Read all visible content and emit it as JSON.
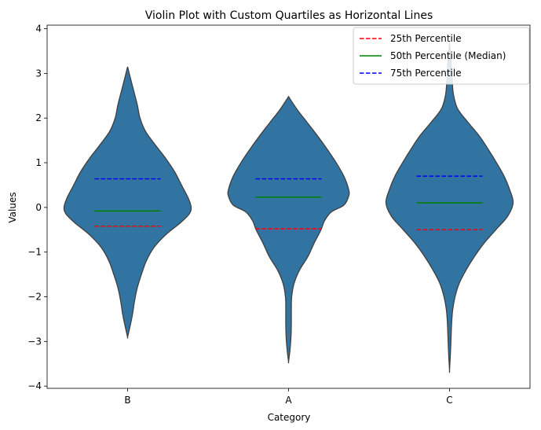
{
  "chart_data": {
    "type": "violin",
    "title": "Violin Plot with Custom Quartiles as Horizontal Lines",
    "xlabel": "Category",
    "ylabel": "Values",
    "ylim": [
      -4.05,
      4.08
    ],
    "yticks": [
      4,
      3,
      2,
      1,
      0,
      -1,
      -2,
      -3,
      -4
    ],
    "ytick_labels": [
      "4",
      "3",
      "2",
      "1",
      "0",
      "−1",
      "−2",
      "−3",
      "−4"
    ],
    "categories": [
      "B",
      "A",
      "C"
    ],
    "violin_color": "#3274a1",
    "violin_edge_color": "#3f3f3f",
    "violins": [
      {
        "category": "B",
        "q25": -0.42,
        "q50": -0.08,
        "q75": 0.64,
        "profile": [
          [
            3.15,
            0.0
          ],
          [
            2.9,
            0.04
          ],
          [
            2.6,
            0.09
          ],
          [
            2.3,
            0.14
          ],
          [
            2.0,
            0.18
          ],
          [
            1.7,
            0.26
          ],
          [
            1.4,
            0.4
          ],
          [
            1.1,
            0.55
          ],
          [
            0.8,
            0.68
          ],
          [
            0.5,
            0.78
          ],
          [
            0.2,
            0.88
          ],
          [
            0.0,
            0.92
          ],
          [
            -0.15,
            0.89
          ],
          [
            -0.35,
            0.76
          ],
          [
            -0.6,
            0.56
          ],
          [
            -0.9,
            0.38
          ],
          [
            -1.2,
            0.27
          ],
          [
            -1.5,
            0.2
          ],
          [
            -1.8,
            0.14
          ],
          [
            -2.1,
            0.1
          ],
          [
            -2.4,
            0.07
          ],
          [
            -2.7,
            0.03
          ],
          [
            -2.9,
            0.0
          ]
        ]
      },
      {
        "category": "A",
        "q25": -0.48,
        "q50": 0.23,
        "q75": 0.64,
        "profile": [
          [
            2.48,
            0.0
          ],
          [
            2.2,
            0.12
          ],
          [
            1.9,
            0.27
          ],
          [
            1.6,
            0.42
          ],
          [
            1.3,
            0.56
          ],
          [
            1.0,
            0.69
          ],
          [
            0.7,
            0.8
          ],
          [
            0.4,
            0.87
          ],
          [
            0.25,
            0.87
          ],
          [
            0.05,
            0.8
          ],
          [
            -0.1,
            0.62
          ],
          [
            -0.3,
            0.52
          ],
          [
            -0.5,
            0.47
          ],
          [
            -0.8,
            0.37
          ],
          [
            -1.1,
            0.28
          ],
          [
            -1.4,
            0.16
          ],
          [
            -1.7,
            0.08
          ],
          [
            -2.0,
            0.045
          ],
          [
            -2.3,
            0.04
          ],
          [
            -2.6,
            0.04
          ],
          [
            -2.9,
            0.035
          ],
          [
            -3.2,
            0.02
          ],
          [
            -3.45,
            0.0
          ]
        ]
      },
      {
        "category": "C",
        "q25": -0.5,
        "q50": 0.1,
        "q75": 0.7,
        "profile": [
          [
            3.7,
            0.0
          ],
          [
            3.3,
            0.02
          ],
          [
            2.8,
            0.04
          ],
          [
            2.5,
            0.06
          ],
          [
            2.2,
            0.12
          ],
          [
            1.9,
            0.27
          ],
          [
            1.6,
            0.43
          ],
          [
            1.3,
            0.56
          ],
          [
            1.0,
            0.68
          ],
          [
            0.7,
            0.79
          ],
          [
            0.4,
            0.87
          ],
          [
            0.1,
            0.92
          ],
          [
            -0.2,
            0.84
          ],
          [
            -0.5,
            0.67
          ],
          [
            -0.8,
            0.5
          ],
          [
            -1.1,
            0.36
          ],
          [
            -1.4,
            0.24
          ],
          [
            -1.7,
            0.14
          ],
          [
            -2.0,
            0.08
          ],
          [
            -2.3,
            0.045
          ],
          [
            -2.6,
            0.03
          ],
          [
            -3.0,
            0.02
          ],
          [
            -3.3,
            0.012
          ],
          [
            -3.65,
            0.0
          ]
        ]
      }
    ],
    "legend": {
      "placement": "top-right",
      "entries": [
        {
          "label": "25th Percentile",
          "color": "#ff0000",
          "style": "dashed"
        },
        {
          "label": "50th Percentile (Median)",
          "color": "#008000",
          "style": "solid"
        },
        {
          "label": "75th Percentile",
          "color": "#0000ff",
          "style": "dashed"
        }
      ]
    }
  }
}
